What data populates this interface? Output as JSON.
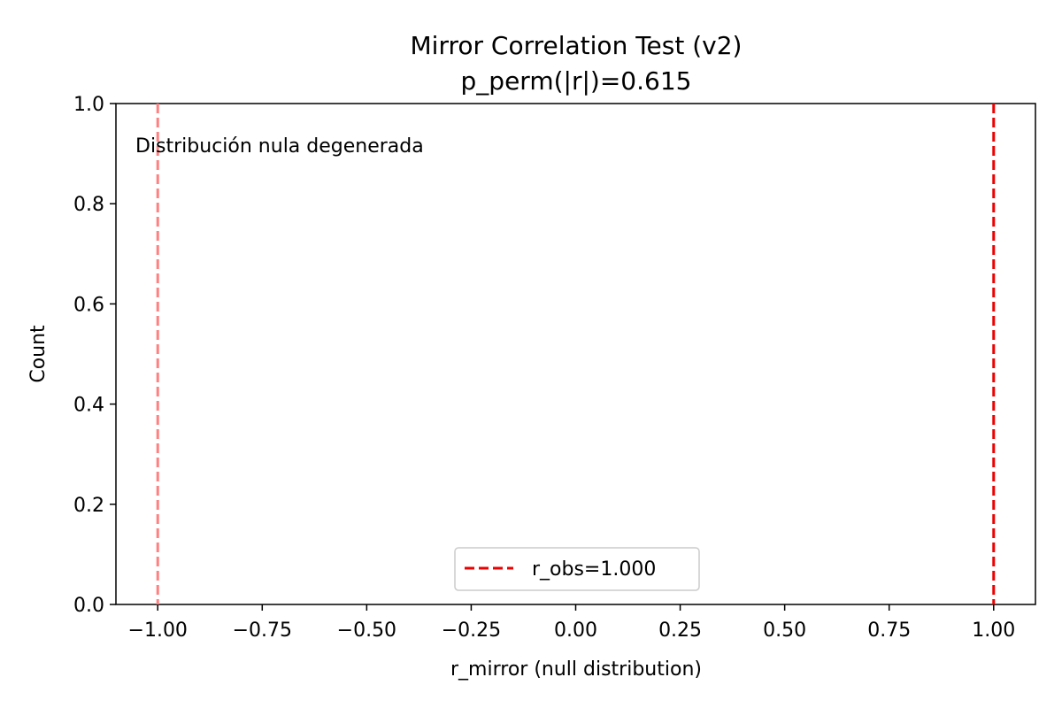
{
  "chart_data": {
    "type": "histogram",
    "title": "Mirror Correlation Test (v2)",
    "subtitle": "p_perm(|r|)=0.615",
    "xlabel": "r_mirror (null distribution)",
    "ylabel": "Count",
    "xlim": [
      -1.1,
      1.1
    ],
    "ylim": [
      0.0,
      1.0
    ],
    "xticks": [
      -1.0,
      -0.75,
      -0.5,
      -0.25,
      0.0,
      0.25,
      0.5,
      0.75,
      1.0
    ],
    "xtick_labels": [
      "−1.00",
      "−0.75",
      "−0.50",
      "−0.25",
      "0.00",
      "0.25",
      "0.50",
      "0.75",
      "1.00"
    ],
    "yticks": [
      0.0,
      0.2,
      0.4,
      0.6,
      0.8,
      1.0
    ],
    "ytick_labels": [
      "0.0",
      "0.2",
      "0.4",
      "0.6",
      "0.8",
      "1.0"
    ],
    "grid": false,
    "bins": [],
    "vlines": [
      {
        "name": "",
        "x": -1.0,
        "color": "#ff8080",
        "style": "dashed",
        "in_legend": false
      },
      {
        "name": "r_obs=1.000",
        "x": 1.0,
        "color": "#ee0000",
        "style": "dashed",
        "in_legend": true
      }
    ],
    "annotation": {
      "text": "Distribución nula degenerada",
      "x": -1.05,
      "y": 0.92
    },
    "legend": {
      "placement": "lower center",
      "entries": [
        "r_obs=1.000"
      ]
    }
  }
}
